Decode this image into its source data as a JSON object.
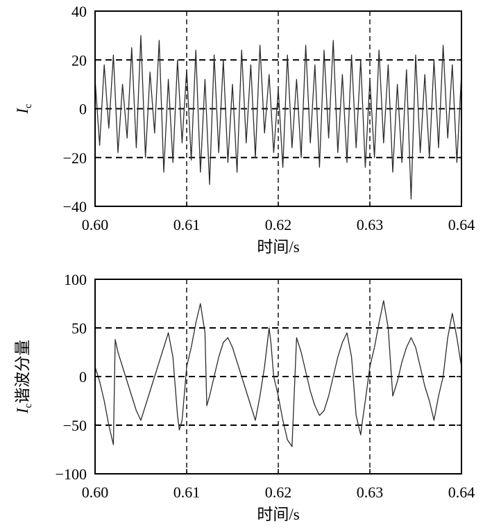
{
  "chart_data": [
    {
      "type": "line",
      "xlabel": "时间/s",
      "ylabel_main": "I",
      "ylabel_sub": "c",
      "ylabel_suffix": "",
      "xlim": [
        0.6,
        0.64
      ],
      "ylim": [
        -40,
        40
      ],
      "xticks": [
        0.6,
        0.61,
        0.62,
        0.63,
        0.64
      ],
      "xtick_labels": [
        "0.60",
        "0.61",
        "0.62",
        "0.63",
        "0.64"
      ],
      "yticks": [
        -40,
        -20,
        0,
        20,
        40
      ],
      "ytick_labels": [
        "−40",
        "−20",
        "0",
        "20",
        "40"
      ],
      "hlines": [
        -20,
        0,
        20
      ],
      "vlines": [
        0.61,
        0.62,
        0.63
      ],
      "series": [
        {
          "x": [
            0.6,
            0.6005,
            0.601,
            0.6015,
            0.602,
            0.6025,
            0.603,
            0.6035,
            0.604,
            0.6045,
            0.605,
            0.6055,
            0.606,
            0.6065,
            0.607,
            0.6075,
            0.608,
            0.6085,
            0.609,
            0.6095,
            0.61,
            0.6105,
            0.611,
            0.6115,
            0.612,
            0.6125,
            0.613,
            0.6135,
            0.614,
            0.6145,
            0.615,
            0.6155,
            0.616,
            0.6165,
            0.617,
            0.6175,
            0.618,
            0.6185,
            0.619,
            0.6195,
            0.62,
            0.6205,
            0.621,
            0.6215,
            0.622,
            0.6225,
            0.623,
            0.6235,
            0.624,
            0.6245,
            0.625,
            0.6255,
            0.626,
            0.6265,
            0.627,
            0.6275,
            0.628,
            0.6285,
            0.629,
            0.6295,
            0.63,
            0.6305,
            0.631,
            0.6315,
            0.632,
            0.6325,
            0.633,
            0.6335,
            0.634,
            0.6345,
            0.635,
            0.6355,
            0.636,
            0.6365,
            0.637,
            0.6375,
            0.638,
            0.6385,
            0.639,
            0.6395,
            0.64
          ],
          "y": [
            12,
            -15,
            18,
            -8,
            22,
            -18,
            10,
            -12,
            25,
            -16,
            30,
            -20,
            15,
            -10,
            28,
            -26,
            12,
            -22,
            20,
            -14,
            16,
            -21,
            24,
            -26,
            12,
            -31,
            22,
            -18,
            20,
            -22,
            10,
            -26,
            24,
            -14,
            18,
            -20,
            26,
            -10,
            14,
            -18,
            8,
            -24,
            22,
            -16,
            12,
            -20,
            26,
            -14,
            18,
            -24,
            24,
            -12,
            28,
            -18,
            14,
            -22,
            22,
            -16,
            20,
            -24,
            12,
            -20,
            24,
            -14,
            18,
            -26,
            10,
            -22,
            16,
            -37,
            22,
            -18,
            14,
            -20,
            20,
            -16,
            26,
            -12,
            18,
            -22,
            14
          ]
        }
      ]
    },
    {
      "type": "line",
      "xlabel": "时间/s",
      "ylabel_main": "I",
      "ylabel_sub": "c",
      "ylabel_suffix": "谐波分量",
      "xlim": [
        0.6,
        0.64
      ],
      "ylim": [
        -100,
        100
      ],
      "xticks": [
        0.6,
        0.61,
        0.62,
        0.63,
        0.64
      ],
      "xtick_labels": [
        "0.60",
        "0.61",
        "0.62",
        "0.63",
        "0.64"
      ],
      "yticks": [
        -100,
        -50,
        0,
        50,
        100
      ],
      "ytick_labels": [
        "−100",
        "−50",
        "0",
        "50",
        "100"
      ],
      "hlines": [
        -50,
        0,
        50
      ],
      "vlines": [
        0.61,
        0.62,
        0.63
      ],
      "series": [
        {
          "x": [
            0.6,
            0.6005,
            0.601,
            0.6015,
            0.602,
            0.6022,
            0.6025,
            0.603,
            0.6035,
            0.604,
            0.6045,
            0.605,
            0.6055,
            0.606,
            0.6065,
            0.607,
            0.6075,
            0.608,
            0.6085,
            0.609,
            0.6092,
            0.6095,
            0.61,
            0.6105,
            0.611,
            0.6115,
            0.612,
            0.6122,
            0.6125,
            0.613,
            0.6135,
            0.614,
            0.6145,
            0.615,
            0.6155,
            0.616,
            0.6165,
            0.617,
            0.6175,
            0.618,
            0.6185,
            0.619,
            0.6192,
            0.6195,
            0.62,
            0.6205,
            0.621,
            0.6215,
            0.622,
            0.6225,
            0.623,
            0.6235,
            0.624,
            0.6245,
            0.625,
            0.6255,
            0.626,
            0.6265,
            0.627,
            0.6275,
            0.628,
            0.6285,
            0.629,
            0.6292,
            0.6295,
            0.63,
            0.6305,
            0.631,
            0.6315,
            0.632,
            0.6325,
            0.633,
            0.6335,
            0.634,
            0.6345,
            0.635,
            0.6355,
            0.636,
            0.6365,
            0.637,
            0.6375,
            0.638,
            0.6385,
            0.639,
            0.6395,
            0.64
          ],
          "y": [
            10,
            -5,
            -25,
            -50,
            -70,
            38,
            25,
            10,
            -5,
            -20,
            -35,
            -45,
            -30,
            -15,
            0,
            15,
            30,
            45,
            20,
            -40,
            -55,
            -45,
            10,
            30,
            55,
            75,
            45,
            -30,
            -20,
            0,
            20,
            35,
            40,
            30,
            15,
            0,
            -15,
            -30,
            -45,
            -20,
            10,
            50,
            35,
            0,
            -20,
            -45,
            -65,
            -72,
            40,
            25,
            5,
            -15,
            -30,
            -40,
            -35,
            -20,
            0,
            20,
            35,
            45,
            20,
            -40,
            -60,
            -45,
            -25,
            10,
            30,
            55,
            78,
            50,
            -20,
            -5,
            15,
            30,
            40,
            30,
            10,
            -10,
            -25,
            -45,
            -20,
            0,
            40,
            65,
            40,
            10
          ]
        }
      ]
    }
  ]
}
